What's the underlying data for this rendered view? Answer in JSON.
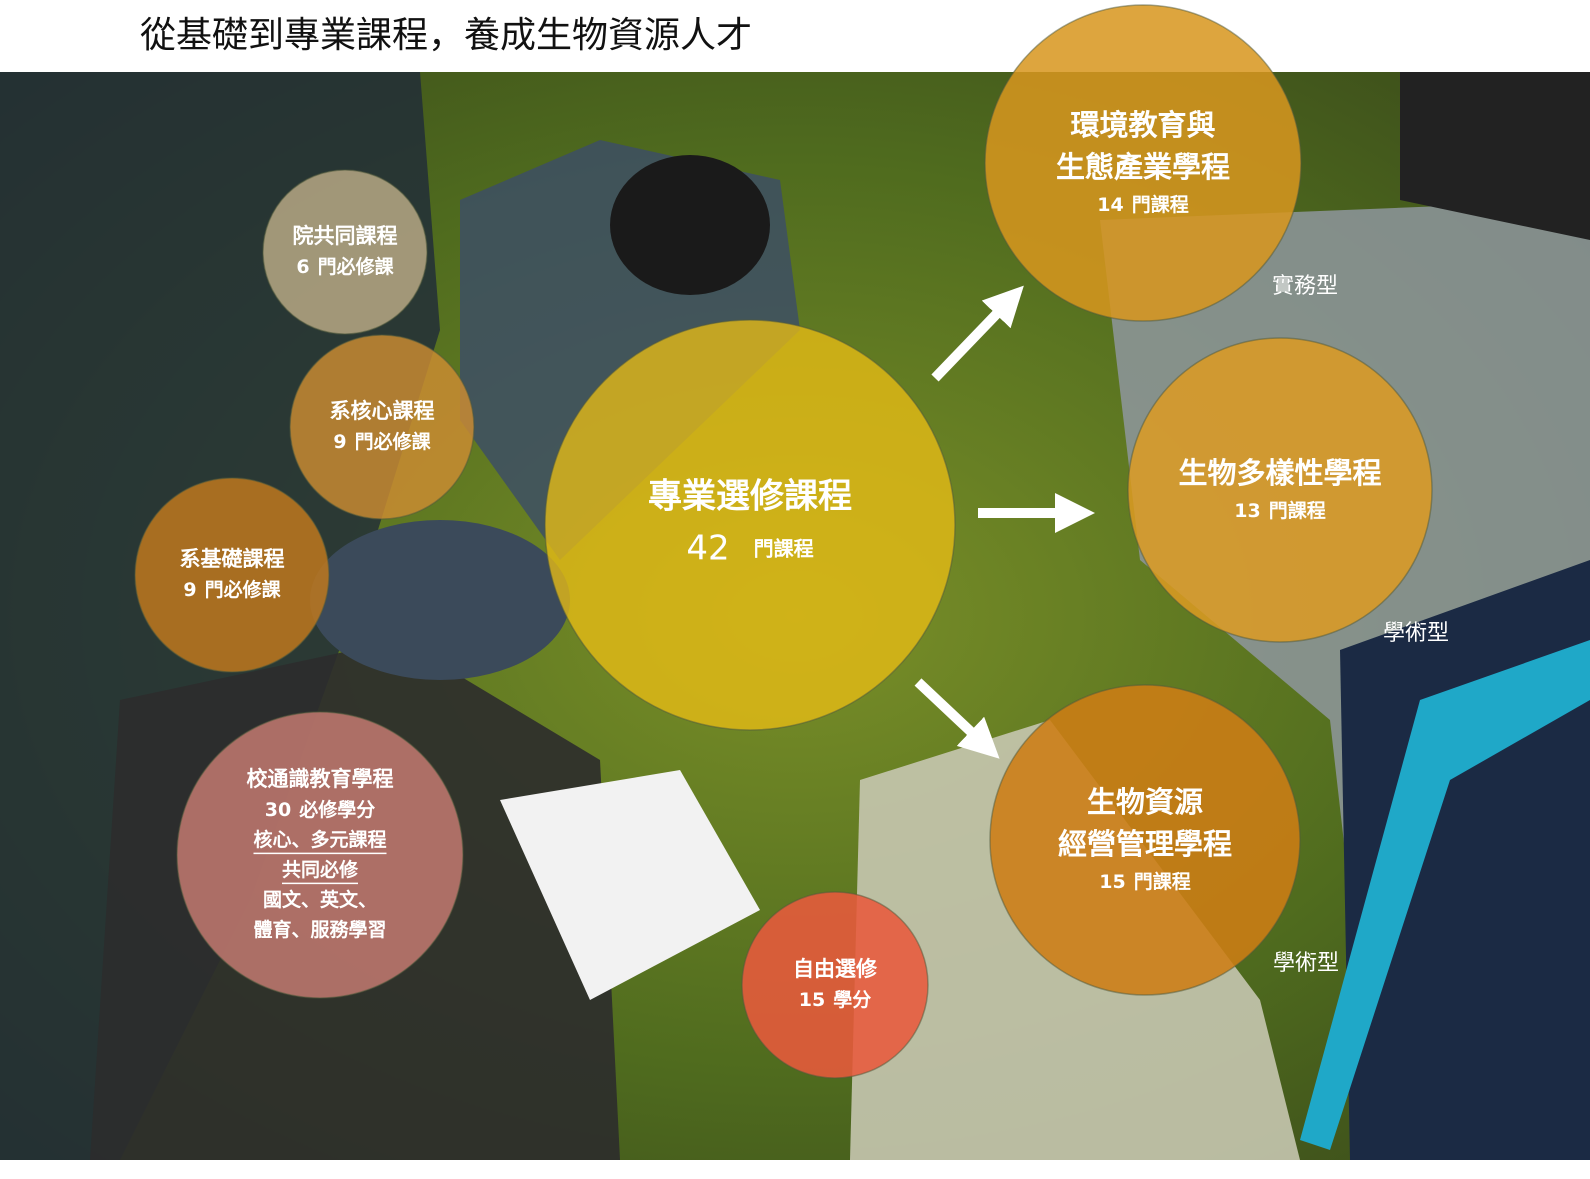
{
  "title": "從基礎到專業課程，養成生物資源人才",
  "nodes": [
    {
      "title_lines": [
        "院共同課程"
      ],
      "count": 6,
      "unit": "門必修課"
    },
    {
      "title_lines": [
        "系核心課程"
      ],
      "count": 9,
      "unit": "門必修課"
    },
    {
      "title_lines": [
        "系基礎課程"
      ],
      "count": 9,
      "unit": "門必修課"
    },
    {
      "title_lines": [
        "專業選修課程"
      ],
      "count": 42,
      "unit": "門課程"
    },
    {
      "title_lines": [
        "環境教育與",
        "生態產業學程"
      ],
      "count": 14,
      "unit": "門課程"
    },
    {
      "title_lines": [
        "生物多樣性學程"
      ],
      "count": 13,
      "unit": "門課程"
    },
    {
      "title_lines": [
        "生物資源",
        "經營管理學程"
      ],
      "count": 15,
      "unit": "門課程"
    },
    {
      "title_lines": [
        "校通識教育學程"
      ],
      "count": 30,
      "unit": "必修學分",
      "notes": [
        "核心、多元課程",
        "共同必修"
      ],
      "subjects": [
        "國文、英文、",
        "體育、服務學習"
      ]
    },
    {
      "title_lines": [
        "自由選修"
      ],
      "count": 15,
      "unit": "學分"
    }
  ],
  "track_labels": [
    "實務型",
    "學術型",
    "學術型"
  ]
}
